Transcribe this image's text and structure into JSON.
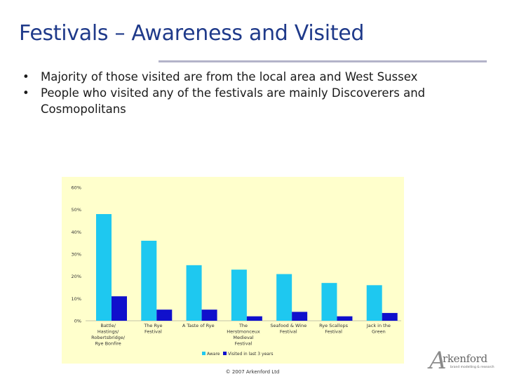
{
  "slide": {
    "title": "Festivals – Awareness and Visited",
    "bullets": [
      "Majority of those visited are from the local area and West Sussex",
      "People who visited any of the festivals are mainly Discoverers and Cosmopolitans"
    ],
    "copyright": "© 2007 Arkenford Ltd",
    "logo": {
      "mark": "A",
      "word": "rkenford",
      "tagline": "brand modelling & research"
    }
  },
  "colors": {
    "title": "#1f3a8a",
    "chart_bg": "#ffffcc",
    "aware": "#1ec8f0",
    "visited": "#1010cc"
  },
  "chart_data": {
    "type": "bar",
    "categories": [
      "Battle/ Hastings/ Robertsbridge/ Rye Bonfire",
      "The Rye Festival",
      "A Taste of Rye",
      "The Herstmonceux Medieval Festival",
      "Seafood & Wine Festival",
      "Rye Scallops Festival",
      "Jack in the Green"
    ],
    "series": [
      {
        "name": "Aware",
        "values": [
          48,
          36,
          25,
          23,
          21,
          17,
          16
        ]
      },
      {
        "name": "Visited in last 3 years",
        "values": [
          11,
          5,
          5,
          2,
          4,
          2,
          3.5
        ]
      }
    ],
    "yticks": [
      "0%",
      "10%",
      "20%",
      "30%",
      "40%",
      "50%",
      "60%"
    ],
    "ylim": [
      0,
      60
    ],
    "legend": "bottom",
    "grid": false
  }
}
